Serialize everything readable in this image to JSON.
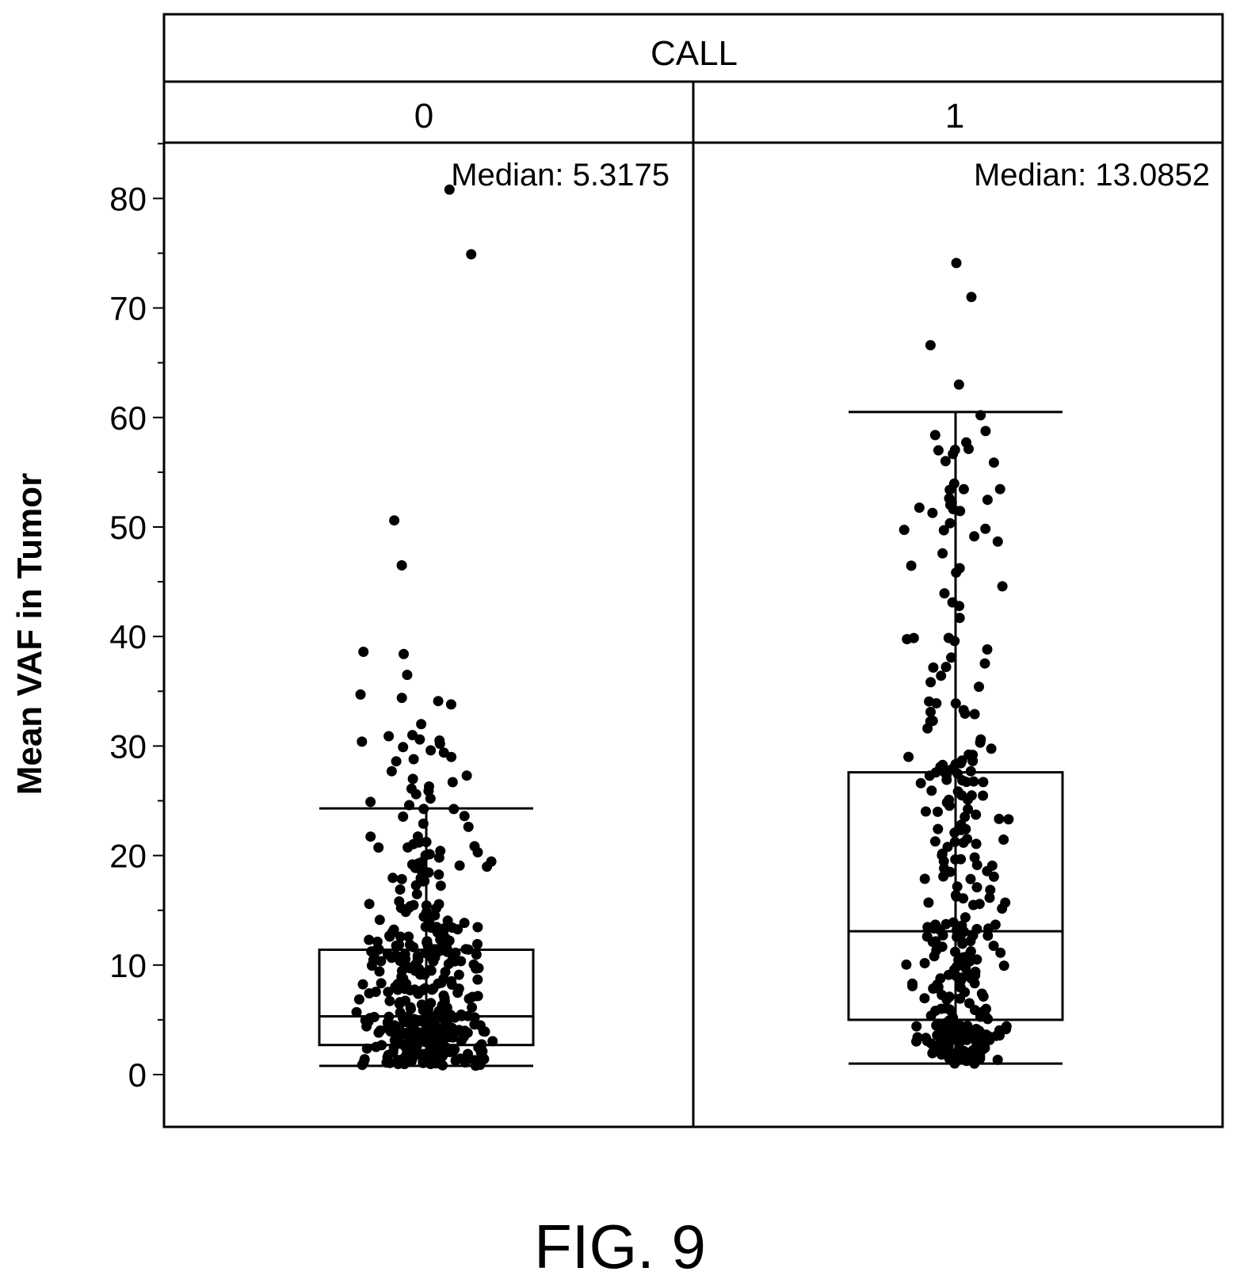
{
  "figure_label": "FIG. 9",
  "chart_data": {
    "type": "box",
    "title": "",
    "facet_title": "CALL",
    "ylabel": "Mean VAF in Tumor",
    "xlabel": "",
    "ylim": [
      -5,
      85
    ],
    "yticks": [
      0,
      10,
      20,
      30,
      40,
      50,
      60,
      70,
      80
    ],
    "ytick_labels": [
      "0",
      "10",
      "20",
      "30",
      "40",
      "50",
      "60",
      "70",
      "80"
    ],
    "grid": false,
    "legend": "none",
    "point_color": "#000000",
    "groups": [
      {
        "label": "0",
        "annotation": "Median: 5.3175",
        "median": 5.3175,
        "q1": 2.7,
        "q3": 11.4,
        "whisker_low": 0.8,
        "whisker_high": 24.3,
        "point_count": 420,
        "outliers": [
          80.8,
          74.9,
          50.6,
          46.5,
          38.6,
          38.4,
          36.5,
          34.7,
          34.4,
          34.1,
          33.8,
          32.0,
          31.0,
          30.9,
          30.6,
          30.5,
          30.4,
          30.2,
          29.9,
          29.6,
          29.4,
          29.0,
          28.8,
          28.6,
          27.7,
          27.3,
          27.0,
          26.7,
          26.3,
          26.1,
          25.9,
          25.6,
          25.2,
          24.9,
          24.6
        ]
      },
      {
        "label": "1",
        "annotation": "Median: 13.0852",
        "median": 13.0852,
        "q1": 5.0,
        "q3": 27.6,
        "whisker_low": 1.0,
        "whisker_high": 60.5,
        "point_count": 320,
        "outliers": [
          74.1,
          71.0,
          66.6,
          63.0
        ]
      }
    ]
  }
}
